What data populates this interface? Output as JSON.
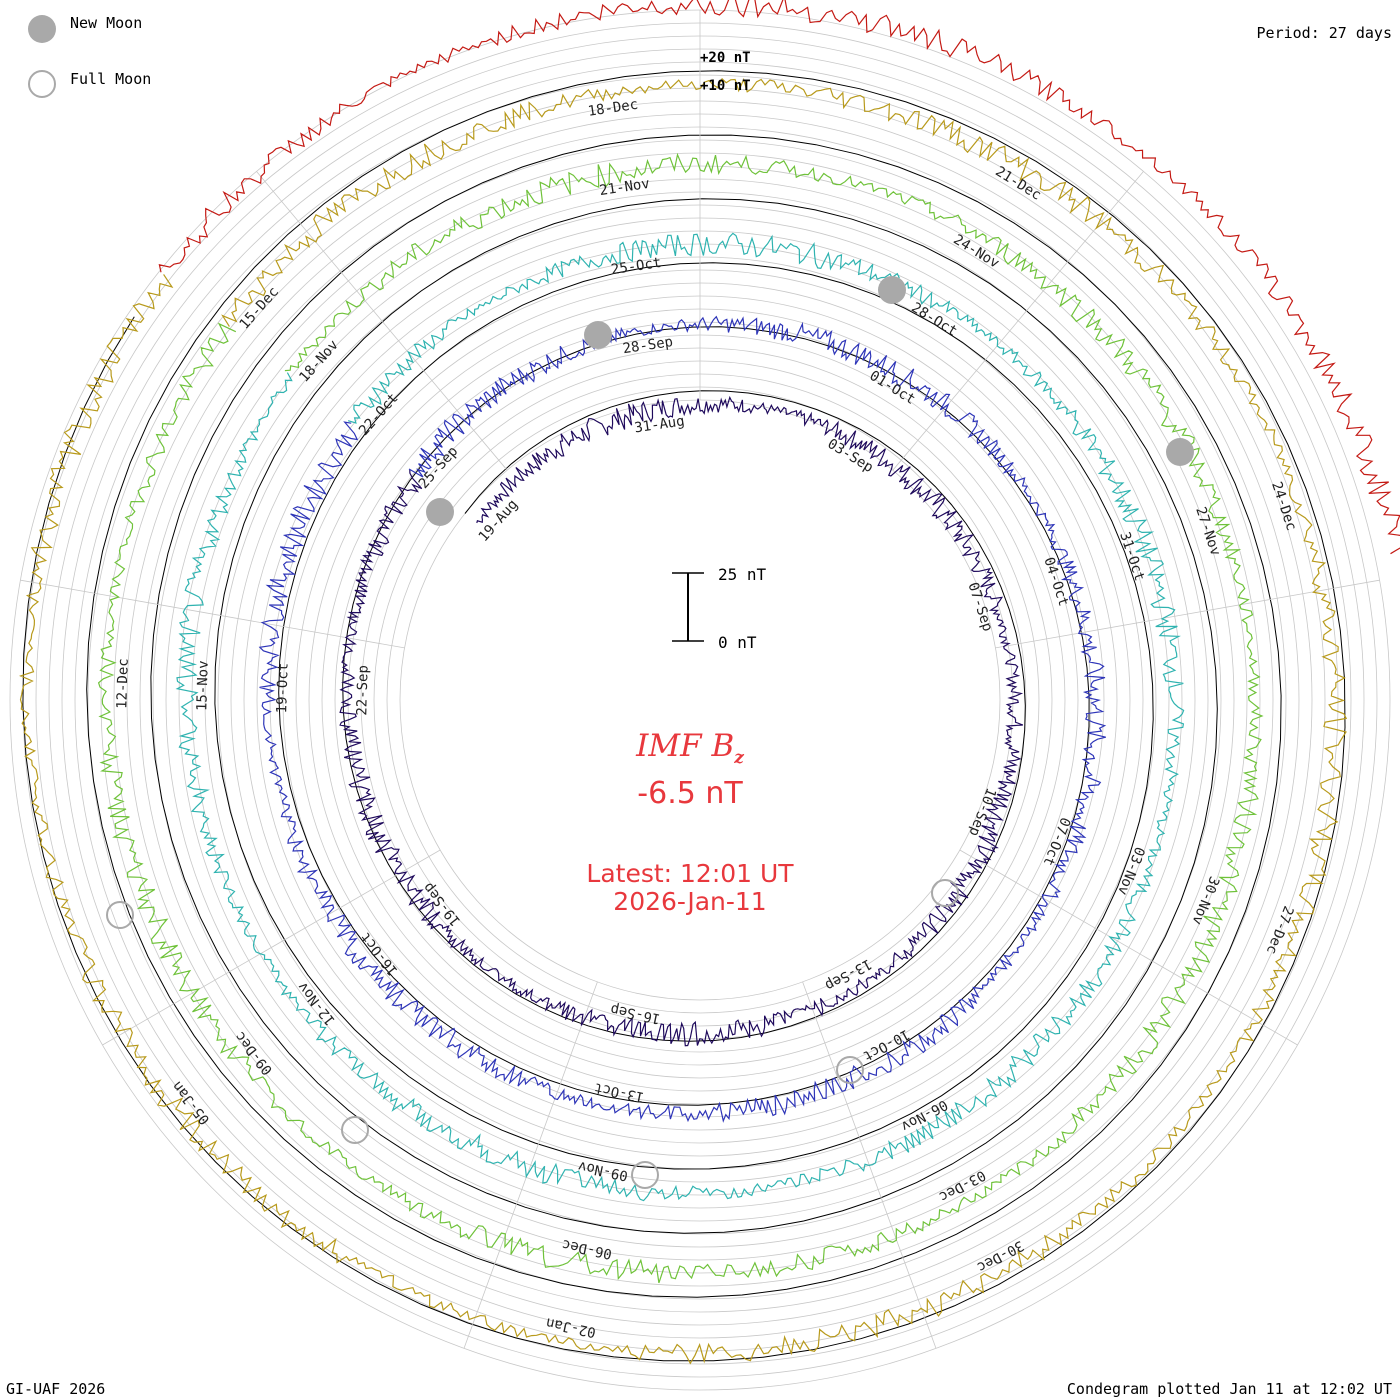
{
  "legend": {
    "new_moon_label": "New Moon",
    "full_moon_label": "Full Moon",
    "new_moon_color": "#a9a9a9",
    "full_moon_color": "#a9a9a9"
  },
  "header": {
    "period": "Period: 27 days"
  },
  "footer": {
    "credit": "GI-UAF 2026",
    "plotted": "Condegram plotted Jan 11 at 12:02 UT"
  },
  "center": {
    "title": "IMF B",
    "subscript": "z",
    "value": "-6.5 nT",
    "latest_line1": "Latest: 12:01 UT",
    "latest_line2": "2026-Jan-11",
    "text_color": "#e8383d"
  },
  "chart_data": {
    "type": "line",
    "title": "IMF Bz",
    "description_mode": "condegram",
    "period_days": 27,
    "scale_labels": [
      "+20 nT",
      "+10 nT"
    ],
    "scale_bar_labels": [
      "25 nT",
      "0 nT"
    ],
    "rotations": [
      {
        "name": "rotation-1",
        "color": "#1f0a5c",
        "date_labels": [
          "19-Aug",
          "31-Aug",
          "03-Sep",
          "07-Sep",
          "10-Sep",
          "13-Sep",
          "16-Sep",
          "19-Sep",
          "22-Sep"
        ]
      },
      {
        "name": "rotation-2",
        "color": "#2e35b8",
        "date_labels": [
          "25-Sep",
          "28-Sep",
          "01-Oct",
          "04-Oct",
          "07-Oct",
          "10-Oct",
          "13-Oct",
          "16-Oct",
          "19-Oct"
        ]
      },
      {
        "name": "rotation-3",
        "color": "#2fb3b0",
        "date_labels": [
          "22-Oct",
          "25-Oct",
          "28-Oct",
          "31-Oct",
          "03-Nov",
          "06-Nov",
          "09-Nov",
          "12-Nov",
          "15-Nov"
        ]
      },
      {
        "name": "rotation-4",
        "color": "#6fc23a",
        "date_labels": [
          "18-Nov",
          "21-Nov",
          "24-Nov",
          "27-Nov",
          "30-Nov",
          "03-Dec",
          "06-Dec",
          "09-Dec",
          "12-Dec"
        ]
      },
      {
        "name": "rotation-5",
        "color": "#b89a1c",
        "date_labels": [
          "15-Dec",
          "18-Dec",
          "21-Dec",
          "24-Dec",
          "27-Dec",
          "30-Dec",
          "02-Jan",
          "05-Jan"
        ]
      },
      {
        "name": "rotation-6",
        "color": "#c41a14",
        "date_labels": []
      }
    ],
    "latest_value_nT": -6.5,
    "ylabel": "nT"
  }
}
